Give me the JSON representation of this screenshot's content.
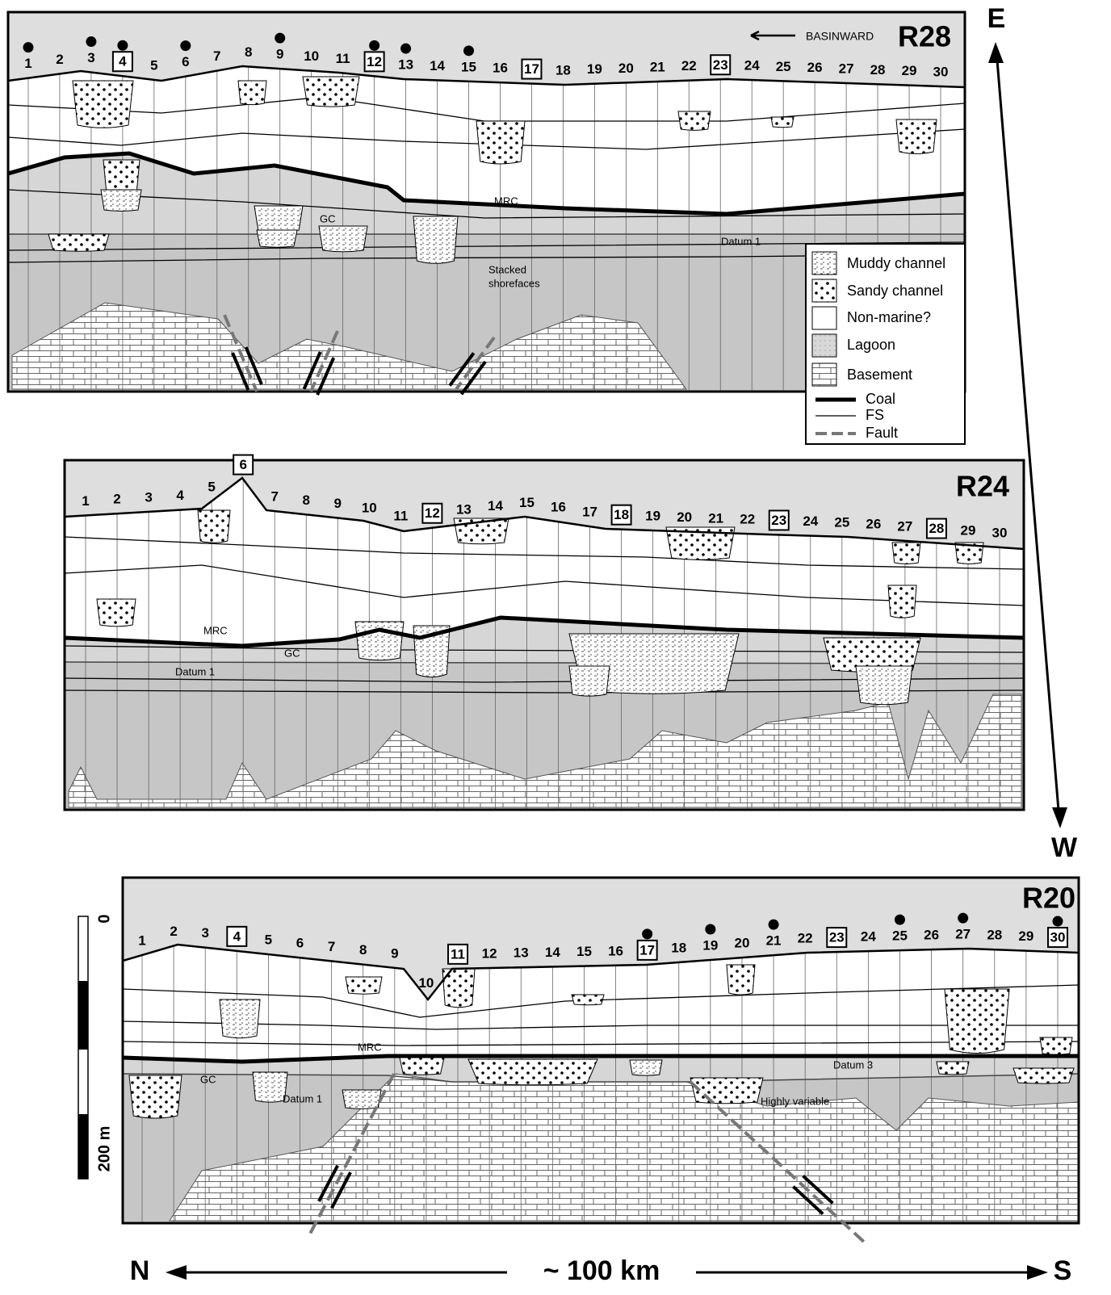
{
  "orientation": {
    "top": "E",
    "bottom": "W",
    "left": "N",
    "right": "S",
    "distance": "~ 100 km"
  },
  "scale": {
    "top": "0",
    "bottom": "200 m"
  },
  "legend": [
    "Muddy channel",
    "Sandy channel",
    "Non-marine?",
    "Lagoon",
    "Basement",
    "Coal",
    "FS",
    "Fault"
  ],
  "panels": [
    {
      "label": "R28",
      "direction": "BASINWARD",
      "wells": [
        {
          "label": "1",
          "dot": true
        },
        {
          "label": "2"
        },
        {
          "label": "3",
          "dot": true
        },
        {
          "label": "4",
          "boxed": true,
          "dot": true
        },
        {
          "label": "5"
        },
        {
          "label": "6",
          "dot": true
        },
        {
          "label": "7"
        },
        {
          "label": "8"
        },
        {
          "label": "9",
          "dot": true
        },
        {
          "label": "10"
        },
        {
          "label": "11"
        },
        {
          "label": "12",
          "boxed": true,
          "dot": true
        },
        {
          "label": "13",
          "dot": true
        },
        {
          "label": "14"
        },
        {
          "label": "15",
          "dot": true
        },
        {
          "label": "16"
        },
        {
          "label": "17",
          "boxed": true
        },
        {
          "label": "18"
        },
        {
          "label": "19"
        },
        {
          "label": "20"
        },
        {
          "label": "21"
        },
        {
          "label": "22"
        },
        {
          "label": "23",
          "boxed": true
        },
        {
          "label": "24"
        },
        {
          "label": "25"
        },
        {
          "label": "26"
        },
        {
          "label": "27"
        },
        {
          "label": "28"
        },
        {
          "label": "29"
        },
        {
          "label": "30"
        }
      ],
      "annotations": [
        "MRC",
        "GC",
        "Datum 1",
        "Stacked",
        "shorefaces"
      ]
    },
    {
      "label": "R24",
      "wells": [
        {
          "label": "1"
        },
        {
          "label": "2"
        },
        {
          "label": "3"
        },
        {
          "label": "4"
        },
        {
          "label": "5"
        },
        {
          "label": "6",
          "boxed": true
        },
        {
          "label": "7"
        },
        {
          "label": "8"
        },
        {
          "label": "9"
        },
        {
          "label": "10"
        },
        {
          "label": "11"
        },
        {
          "label": "12",
          "boxed": true
        },
        {
          "label": "13"
        },
        {
          "label": "14"
        },
        {
          "label": "15"
        },
        {
          "label": "16"
        },
        {
          "label": "17"
        },
        {
          "label": "18",
          "boxed": true
        },
        {
          "label": "19"
        },
        {
          "label": "20"
        },
        {
          "label": "21"
        },
        {
          "label": "22"
        },
        {
          "label": "23",
          "boxed": true
        },
        {
          "label": "24"
        },
        {
          "label": "25"
        },
        {
          "label": "26"
        },
        {
          "label": "27"
        },
        {
          "label": "28",
          "boxed": true
        },
        {
          "label": "29"
        },
        {
          "label": "30"
        }
      ],
      "annotations": [
        "MRC",
        "GC",
        "Datum 1"
      ]
    },
    {
      "label": "R20",
      "wells": [
        {
          "label": "1"
        },
        {
          "label": "2"
        },
        {
          "label": "3"
        },
        {
          "label": "4",
          "boxed": true
        },
        {
          "label": "5"
        },
        {
          "label": "6"
        },
        {
          "label": "7"
        },
        {
          "label": "8"
        },
        {
          "label": "9"
        },
        {
          "label": "10"
        },
        {
          "label": "11",
          "boxed": true
        },
        {
          "label": "12"
        },
        {
          "label": "13"
        },
        {
          "label": "14"
        },
        {
          "label": "15"
        },
        {
          "label": "16"
        },
        {
          "label": "17",
          "boxed": true,
          "dot": true
        },
        {
          "label": "18"
        },
        {
          "label": "19",
          "dot": true
        },
        {
          "label": "20"
        },
        {
          "label": "21",
          "dot": true
        },
        {
          "label": "22"
        },
        {
          "label": "23",
          "boxed": true
        },
        {
          "label": "24"
        },
        {
          "label": "25",
          "dot": true
        },
        {
          "label": "26"
        },
        {
          "label": "27",
          "dot": true
        },
        {
          "label": "28"
        },
        {
          "label": "29"
        },
        {
          "label": "30",
          "boxed": true,
          "dot": true
        }
      ],
      "annotations": [
        "MRC",
        "GC",
        "Datum 1",
        "Datum 3",
        "Highly variable"
      ]
    }
  ]
}
